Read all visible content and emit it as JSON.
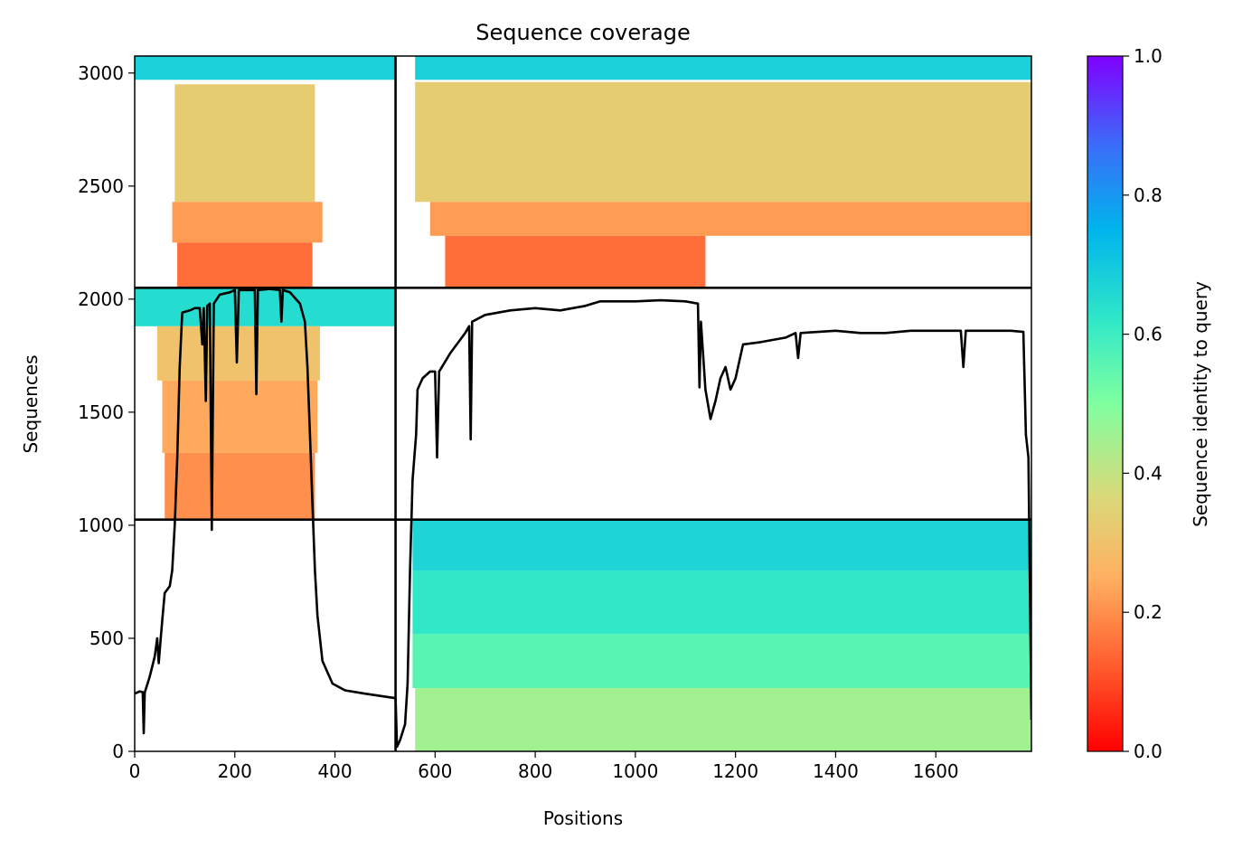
{
  "chart_data": {
    "type": "heatmap",
    "title": "Sequence coverage",
    "xlabel": "Positions",
    "ylabel": "Sequences",
    "xlim": [
      0,
      1791
    ],
    "ylim": [
      0,
      3075
    ],
    "xticks": [
      0,
      200,
      400,
      600,
      800,
      1000,
      1200,
      1400,
      1600
    ],
    "yticks": [
      0,
      500,
      1000,
      1500,
      2000,
      2500,
      3000
    ],
    "grid": false,
    "chain_breaks": [
      521
    ],
    "block_breaks": [
      1025,
      2050
    ],
    "colorbar": {
      "label": "Sequence identity to query",
      "colormap": "rainbow_r",
      "range": [
        0,
        1
      ],
      "ticks": [
        "0.0",
        "0.2",
        "0.4",
        "0.6",
        "0.8",
        "1.0"
      ]
    },
    "blocks": [
      {
        "x_range": [
          0,
          521
        ],
        "y_range": [
          2050,
          3075
        ],
        "bands": [
          {
            "from": 2970,
            "to": 3075,
            "identity": 0.68,
            "x_from": 0,
            "x_to": 521
          },
          {
            "from": 2430,
            "to": 2950,
            "identity": 0.33,
            "x_from": 80,
            "x_to": 360
          },
          {
            "from": 2250,
            "to": 2430,
            "identity": 0.22,
            "x_from": 75,
            "x_to": 375
          },
          {
            "from": 2055,
            "to": 2250,
            "identity": 0.15,
            "x_from": 85,
            "x_to": 355
          }
        ]
      },
      {
        "x_range": [
          521,
          1791
        ],
        "y_range": [
          2050,
          3075
        ],
        "bands": [
          {
            "from": 2970,
            "to": 3075,
            "identity": 0.68,
            "x_from": 560,
            "x_to": 1791
          },
          {
            "from": 2430,
            "to": 2960,
            "identity": 0.33,
            "x_from": 560,
            "x_to": 1791
          },
          {
            "from": 2280,
            "to": 2430,
            "identity": 0.22,
            "x_from": 590,
            "x_to": 1791
          },
          {
            "from": 2055,
            "to": 2280,
            "identity": 0.15,
            "x_from": 620,
            "x_to": 1140
          }
        ]
      },
      {
        "x_range": [
          0,
          521
        ],
        "y_range": [
          1025,
          2050
        ],
        "bands": [
          {
            "from": 1880,
            "to": 2050,
            "identity": 0.65,
            "x_from": 0,
            "x_to": 521
          },
          {
            "from": 1640,
            "to": 1880,
            "identity": 0.3,
            "x_from": 45,
            "x_to": 370
          },
          {
            "from": 1320,
            "to": 1640,
            "identity": 0.24,
            "x_from": 55,
            "x_to": 365
          },
          {
            "from": 1030,
            "to": 1320,
            "identity": 0.2,
            "x_from": 60,
            "x_to": 360
          }
        ]
      },
      {
        "x_range": [
          0,
          521
        ],
        "y_range": [
          0,
          1025
        ],
        "bands": []
      },
      {
        "x_range": [
          521,
          1791
        ],
        "y_range": [
          1025,
          2050
        ],
        "bands": []
      },
      {
        "x_range": [
          521,
          1791
        ],
        "y_range": [
          0,
          1025
        ],
        "bands": [
          {
            "from": 800,
            "to": 1025,
            "identity": 0.67,
            "x_from": 555,
            "x_to": 1791
          },
          {
            "from": 520,
            "to": 800,
            "identity": 0.62,
            "x_from": 555,
            "x_to": 1791
          },
          {
            "from": 280,
            "to": 520,
            "identity": 0.56,
            "x_from": 555,
            "x_to": 1791
          },
          {
            "from": 0,
            "to": 280,
            "identity": 0.45,
            "x_from": 560,
            "x_to": 1791
          }
        ]
      }
    ],
    "coverage_line": [
      [
        0,
        255
      ],
      [
        10,
        265
      ],
      [
        16,
        262
      ],
      [
        18,
        80
      ],
      [
        20,
        260
      ],
      [
        30,
        330
      ],
      [
        40,
        420
      ],
      [
        45,
        500
      ],
      [
        48,
        390
      ],
      [
        52,
        500
      ],
      [
        55,
        580
      ],
      [
        60,
        700
      ],
      [
        70,
        730
      ],
      [
        75,
        800
      ],
      [
        80,
        1000
      ],
      [
        85,
        1300
      ],
      [
        90,
        1700
      ],
      [
        95,
        1940
      ],
      [
        110,
        1950
      ],
      [
        120,
        1960
      ],
      [
        130,
        1960
      ],
      [
        135,
        1800
      ],
      [
        138,
        1960
      ],
      [
        142,
        1550
      ],
      [
        145,
        1970
      ],
      [
        150,
        1980
      ],
      [
        154,
        980
      ],
      [
        158,
        1980
      ],
      [
        170,
        2020
      ],
      [
        190,
        2030
      ],
      [
        200,
        2040
      ],
      [
        204,
        1720
      ],
      [
        208,
        2040
      ],
      [
        220,
        2040
      ],
      [
        240,
        2040
      ],
      [
        243,
        1580
      ],
      [
        246,
        2040
      ],
      [
        270,
        2045
      ],
      [
        290,
        2040
      ],
      [
        293,
        1900
      ],
      [
        296,
        2040
      ],
      [
        310,
        2030
      ],
      [
        330,
        1980
      ],
      [
        340,
        1900
      ],
      [
        345,
        1700
      ],
      [
        350,
        1400
      ],
      [
        355,
        1100
      ],
      [
        360,
        800
      ],
      [
        365,
        600
      ],
      [
        375,
        400
      ],
      [
        395,
        300
      ],
      [
        420,
        270
      ],
      [
        460,
        255
      ],
      [
        521,
        235
      ],
      [
        524,
        20
      ],
      [
        530,
        50
      ],
      [
        540,
        120
      ],
      [
        545,
        300
      ],
      [
        550,
        800
      ],
      [
        555,
        1200
      ],
      [
        562,
        1400
      ],
      [
        565,
        1600
      ],
      [
        575,
        1650
      ],
      [
        590,
        1680
      ],
      [
        600,
        1680
      ],
      [
        604,
        1300
      ],
      [
        608,
        1680
      ],
      [
        630,
        1760
      ],
      [
        660,
        1850
      ],
      [
        668,
        1880
      ],
      [
        671,
        1380
      ],
      [
        674,
        1900
      ],
      [
        700,
        1930
      ],
      [
        750,
        1950
      ],
      [
        800,
        1960
      ],
      [
        850,
        1950
      ],
      [
        900,
        1970
      ],
      [
        930,
        1990
      ],
      [
        1000,
        1990
      ],
      [
        1050,
        1995
      ],
      [
        1100,
        1990
      ],
      [
        1125,
        1980
      ],
      [
        1128,
        1610
      ],
      [
        1131,
        1900
      ],
      [
        1140,
        1600
      ],
      [
        1150,
        1470
      ],
      [
        1160,
        1550
      ],
      [
        1170,
        1650
      ],
      [
        1180,
        1700
      ],
      [
        1190,
        1600
      ],
      [
        1200,
        1650
      ],
      [
        1215,
        1800
      ],
      [
        1250,
        1810
      ],
      [
        1300,
        1830
      ],
      [
        1320,
        1850
      ],
      [
        1325,
        1740
      ],
      [
        1330,
        1850
      ],
      [
        1400,
        1860
      ],
      [
        1450,
        1850
      ],
      [
        1500,
        1850
      ],
      [
        1550,
        1860
      ],
      [
        1600,
        1860
      ],
      [
        1650,
        1860
      ],
      [
        1655,
        1700
      ],
      [
        1660,
        1860
      ],
      [
        1700,
        1860
      ],
      [
        1750,
        1860
      ],
      [
        1775,
        1855
      ],
      [
        1780,
        1400
      ],
      [
        1785,
        1300
      ],
      [
        1791,
        140
      ]
    ]
  }
}
